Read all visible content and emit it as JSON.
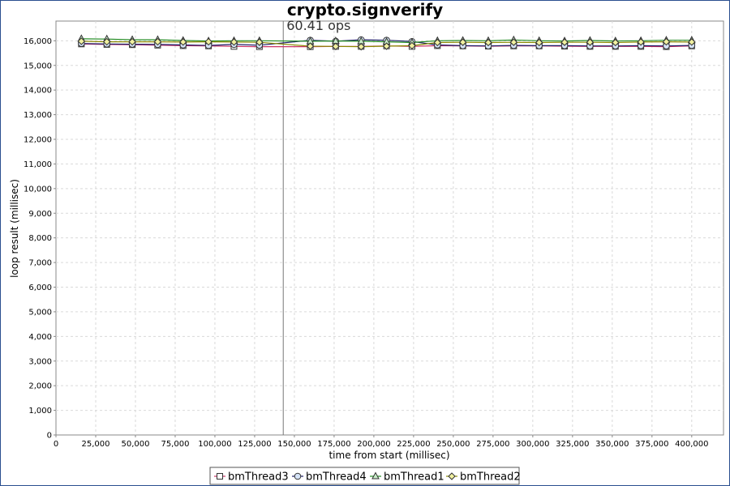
{
  "chart_data": {
    "type": "line",
    "title": "crypto.signverify",
    "annotation": "60.41 ops",
    "annotation_x": 143000,
    "xlabel": "time from start (millisec)",
    "ylabel": "loop result (millisec)",
    "xlim": [
      0,
      420000
    ],
    "ylim": [
      0,
      16800
    ],
    "xticks": [
      0,
      25000,
      50000,
      75000,
      100000,
      125000,
      150000,
      175000,
      200000,
      225000,
      250000,
      275000,
      300000,
      325000,
      350000,
      375000,
      400000
    ],
    "xtick_labels": [
      "0",
      "25,000",
      "50,000",
      "75,000",
      "100,000",
      "125,000",
      "150,000",
      "175,000",
      "200,000",
      "225,000",
      "250,000",
      "275,000",
      "300,000",
      "325,000",
      "350,000",
      "375,000",
      "400,000"
    ],
    "yticks": [
      0,
      1000,
      2000,
      3000,
      4000,
      5000,
      6000,
      7000,
      8000,
      9000,
      10000,
      11000,
      12000,
      13000,
      14000,
      15000,
      16000
    ],
    "ytick_labels": [
      "0",
      "1,000",
      "2,000",
      "3,000",
      "4,000",
      "5,000",
      "6,000",
      "7,000",
      "8,000",
      "9,000",
      "10,000",
      "11,000",
      "12,000",
      "13,000",
      "14,000",
      "15,000",
      "16,000"
    ],
    "grid": true,
    "legend_position": "bottom",
    "series": [
      {
        "name": "bmThread3",
        "marker": "square",
        "line_color": "#cc3366",
        "marker_fill": "#ffffff",
        "x": [
          16000,
          32000,
          48000,
          64000,
          80000,
          96000,
          112000,
          128000,
          160000,
          176000,
          192000,
          208000,
          224000,
          240000,
          256000,
          272000,
          288000,
          304000,
          320000,
          336000,
          352000,
          368000,
          384000,
          400000
        ],
        "y": [
          15870,
          15850,
          15840,
          15820,
          15800,
          15790,
          15770,
          15760,
          15760,
          15770,
          15770,
          15790,
          15770,
          15800,
          15790,
          15780,
          15790,
          15790,
          15780,
          15770,
          15770,
          15770,
          15760,
          15790
        ]
      },
      {
        "name": "bmThread4",
        "marker": "circle",
        "line_color": "#1a1a66",
        "marker_fill": "#d5e3f7",
        "x": [
          16000,
          32000,
          48000,
          64000,
          80000,
          96000,
          112000,
          128000,
          160000,
          176000,
          192000,
          208000,
          224000,
          240000,
          256000,
          272000,
          288000,
          304000,
          320000,
          336000,
          352000,
          368000,
          384000,
          400000
        ],
        "y": [
          15890,
          15870,
          15860,
          15850,
          15830,
          15810,
          15850,
          15820,
          16020,
          15980,
          16040,
          16020,
          15970,
          15830,
          15800,
          15790,
          15810,
          15800,
          15800,
          15790,
          15790,
          15800,
          15790,
          15810
        ]
      },
      {
        "name": "bmThread1",
        "marker": "triangle",
        "line_color": "#228b22",
        "marker_fill": "#c8ecc8",
        "x": [
          16000,
          32000,
          48000,
          64000,
          80000,
          96000,
          112000,
          128000,
          160000,
          176000,
          192000,
          208000,
          224000,
          240000,
          256000,
          272000,
          288000,
          304000,
          320000,
          336000,
          352000,
          368000,
          384000,
          400000
        ],
        "y": [
          16080,
          16070,
          16040,
          16040,
          16010,
          15990,
          16000,
          16000,
          15980,
          15990,
          15980,
          15960,
          15930,
          16000,
          16010,
          16000,
          16030,
          16000,
          15990,
          16010,
          15990,
          16000,
          16020,
          16020
        ]
      },
      {
        "name": "bmThread2",
        "marker": "diamond",
        "line_color": "#8a8a00",
        "marker_fill": "#f0f0a0",
        "x": [
          16000,
          32000,
          48000,
          64000,
          80000,
          96000,
          112000,
          128000,
          160000,
          176000,
          192000,
          208000,
          224000,
          240000,
          256000,
          272000,
          288000,
          304000,
          320000,
          336000,
          352000,
          368000,
          384000,
          400000
        ],
        "y": [
          15980,
          15960,
          15960,
          15960,
          15950,
          15960,
          15950,
          15940,
          15780,
          15770,
          15760,
          15780,
          15800,
          15930,
          15940,
          15930,
          15940,
          15930,
          15940,
          15940,
          15930,
          15950,
          15960,
          15950
        ]
      }
    ]
  }
}
